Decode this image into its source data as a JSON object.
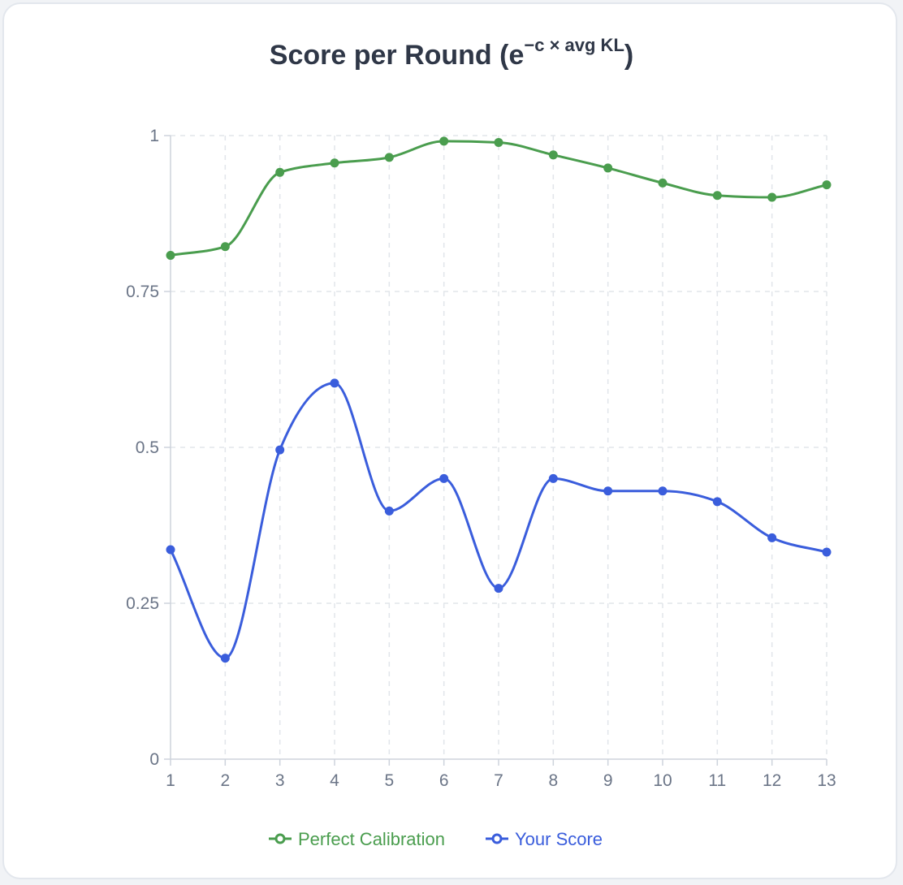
{
  "title": {
    "prefix": "Score per Round (e",
    "sup": "−c × avg KL",
    "suffix": ")"
  },
  "colors": {
    "perfect": "#4a9d4e",
    "yours": "#3a5ddc",
    "grid": "#e2e5ea",
    "axis": "#cdd3dc"
  },
  "chart_data": {
    "type": "line",
    "title": "Score per Round (e−c × avg KL)",
    "xlabel": "",
    "ylabel": "",
    "x": [
      1,
      2,
      3,
      4,
      5,
      6,
      7,
      8,
      9,
      10,
      11,
      12,
      13
    ],
    "xlim": [
      1,
      13
    ],
    "ylim": [
      0,
      1
    ],
    "yticks": [
      0,
      0.25,
      0.5,
      0.75,
      1
    ],
    "ytick_labels": [
      "0",
      "0.25",
      "0.5",
      "0.75",
      "1"
    ],
    "grid": true,
    "legend_position": "bottom",
    "series": [
      {
        "name": "Perfect Calibration",
        "color": "#4a9d4e",
        "values": [
          0.808,
          0.822,
          0.941,
          0.956,
          0.965,
          0.991,
          0.989,
          0.969,
          0.948,
          0.924,
          0.904,
          0.901,
          0.921
        ]
      },
      {
        "name": "Your Score",
        "color": "#3a5ddc",
        "values": [
          0.336,
          0.162,
          0.496,
          0.603,
          0.398,
          0.45,
          0.274,
          0.45,
          0.43,
          0.43,
          0.413,
          0.355,
          0.332
        ]
      }
    ]
  }
}
